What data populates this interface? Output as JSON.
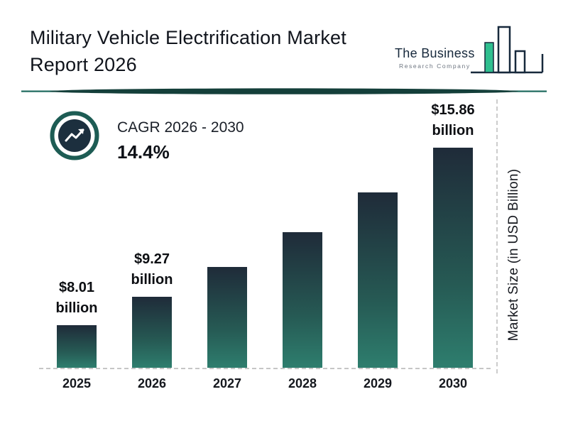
{
  "header": {
    "title_line1": "Military Vehicle Electrification Market",
    "title_line2": "Report 2026",
    "logo": {
      "name_line": "The Business",
      "sub_line": "Research Company"
    }
  },
  "cagr": {
    "label": "CAGR 2026 - 2030",
    "value": "14.4%"
  },
  "chart_data": {
    "type": "bar",
    "title": "Military Vehicle Electrification Market Report 2026",
    "categories": [
      "2025",
      "2026",
      "2027",
      "2028",
      "2029",
      "2030"
    ],
    "values": [
      8.01,
      9.27,
      10.6,
      12.13,
      13.87,
      15.86
    ],
    "value_labels": [
      "$8.01 billion",
      "$9.27 billion",
      null,
      null,
      null,
      "$15.86 billion"
    ],
    "ylabel": "Market Size (in USD Billion)",
    "unit": "USD Billion",
    "cagr_annotation": "CAGR 2026 - 2030: 14.4%",
    "ylim": [
      0,
      16
    ],
    "grid": false,
    "legend": false
  },
  "colors": {
    "bar_top": "#1f2b39",
    "bar_bottom": "#2e7e6e",
    "accent_teal": "#1d6a5e",
    "divider_dark": "#143f3a",
    "dark_navy": "#17293c",
    "logo_green": "#2fbf8f"
  }
}
